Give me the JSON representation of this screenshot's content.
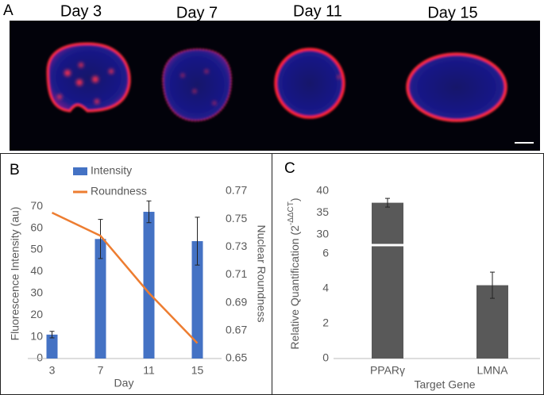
{
  "panel_a": {
    "label": "A",
    "titles": [
      "Day 3",
      "Day 7",
      "Day 11",
      "Day 15"
    ]
  },
  "chart_data": [
    {
      "type": "bar",
      "panel": "B",
      "categories": [
        "3",
        "7",
        "11",
        "15"
      ],
      "xlabel": "Day",
      "ylabel": "Fluorescence Intensity (au)",
      "y2label": "Nuclear Roundness",
      "series": [
        {
          "name": "Intensity",
          "color": "#4472c4",
          "values": [
            11,
            55,
            67.5,
            54
          ],
          "errors": [
            1.5,
            9,
            5,
            11
          ]
        },
        {
          "name": "Roundness",
          "type": "line",
          "axis": "y2",
          "color": "#ed7d31",
          "values": [
            0.7546,
            0.738,
            0.697,
            0.661
          ]
        }
      ],
      "ylim": [
        0,
        77
      ],
      "yticks": [
        0,
        10,
        20,
        30,
        40,
        50,
        60,
        70
      ],
      "y2lim": [
        0.65,
        0.77
      ],
      "y2ticks": [
        {
          "value": 0.65,
          "label": "0.65"
        },
        {
          "value": 0.67,
          "label": "0.67"
        },
        {
          "value": 0.69,
          "label": "0.69"
        },
        {
          "value": 0.71,
          "label": "0.71"
        },
        {
          "value": 0.73,
          "label": "0.73"
        },
        {
          "value": 0.75,
          "label": "0.75"
        },
        {
          "value": 0.77,
          "label": "0.77"
        }
      ],
      "legend": "top-left"
    },
    {
      "type": "bar",
      "panel": "C",
      "categories": [
        "PPARγ",
        "LMNA"
      ],
      "xlabel": "Target Gene",
      "ylabel": {
        "text": "Relative Quantification (2",
        "superscript": "-ΔΔCT",
        "close": ")"
      },
      "series": [
        {
          "color": "#595959",
          "values": [
            37.3,
            4.2
          ],
          "errors": [
            1,
            0.75
          ]
        }
      ],
      "ylim": [
        0,
        40
      ],
      "ybreak": [
        6.3,
        28.5
      ],
      "yticks": [
        0,
        2,
        4,
        6,
        30,
        35,
        40
      ]
    }
  ]
}
